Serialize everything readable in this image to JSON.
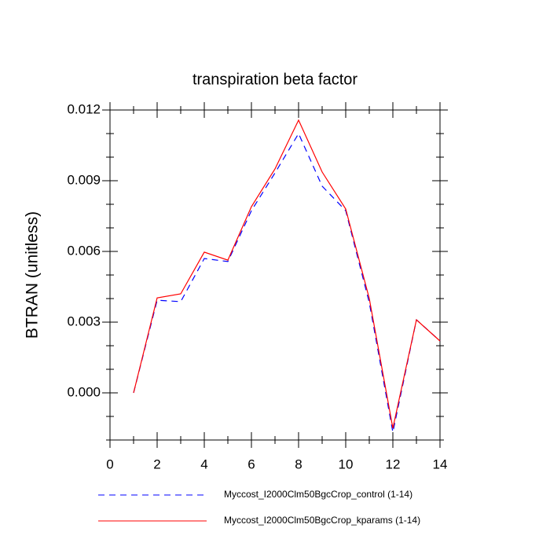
{
  "chart_data": {
    "type": "line",
    "title": "transpiration beta factor",
    "ylabel": "BTRAN  (unitless)",
    "x": [
      1,
      2,
      3,
      4,
      5,
      6,
      7,
      8,
      9,
      10,
      11,
      12,
      13,
      14
    ],
    "series": [
      {
        "name": "Myccost_I2000Clm50BgcCrop_control (1-14)",
        "color": "#0000ff",
        "dash": true,
        "values": [
          0.0,
          0.00393,
          0.00387,
          0.0057,
          0.00557,
          0.00773,
          0.00933,
          0.011,
          0.00877,
          0.00773,
          0.00383,
          -0.00167,
          0.0031,
          0.0022
        ]
      },
      {
        "name": "Myccost_I2000Clm50BgcCrop_kparams (1-14)",
        "color": "#ff0000",
        "dash": false,
        "values": [
          0.0,
          0.00403,
          0.0042,
          0.00597,
          0.00563,
          0.0079,
          0.0095,
          0.01157,
          0.00937,
          0.0078,
          0.004,
          -0.0015,
          0.0031,
          0.0022
        ]
      }
    ],
    "xlim": [
      0,
      14
    ],
    "xticks": [
      0,
      2,
      4,
      6,
      8,
      10,
      12,
      14
    ],
    "ylim": [
      -0.002,
      0.012
    ],
    "yticks": [
      {
        "value": 0,
        "label": "0.000"
      },
      0.003,
      0.006,
      0.009,
      0.012
    ]
  }
}
